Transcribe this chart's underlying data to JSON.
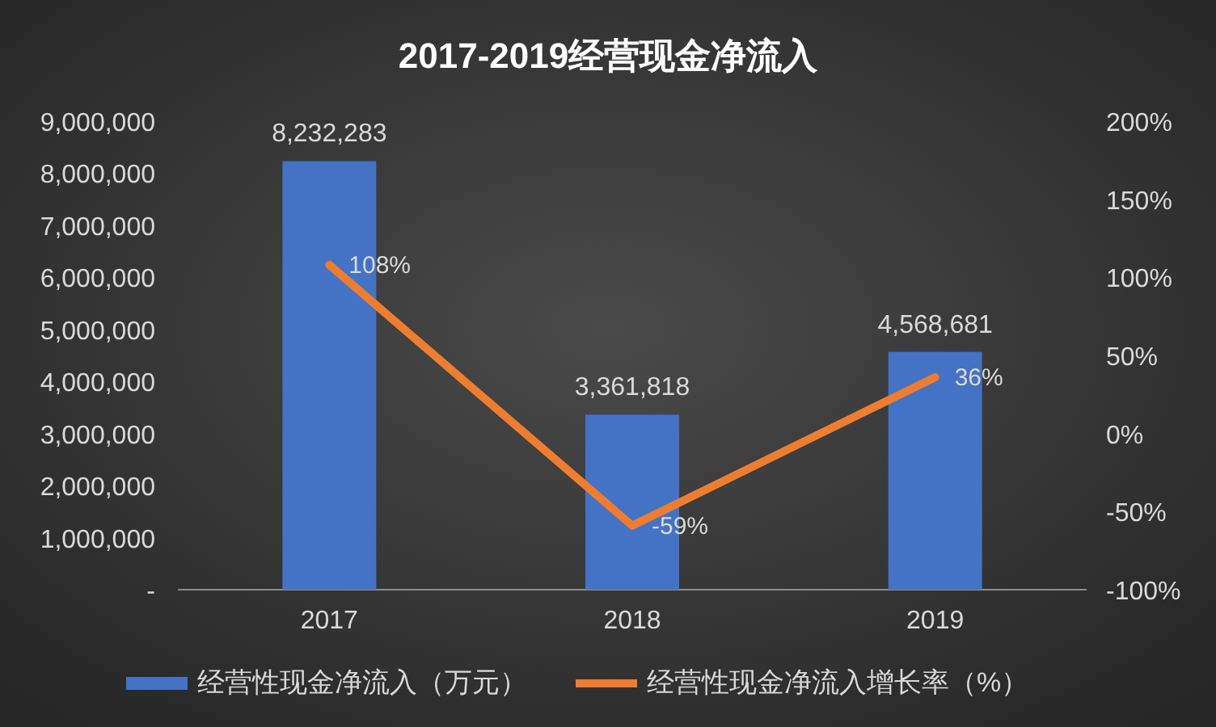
{
  "chart_data": {
    "type": "bar",
    "title": "2017-2019经营现金净流入",
    "categories": [
      "2017",
      "2018",
      "2019"
    ],
    "series": [
      {
        "name": "经营性现金净流入（万元）",
        "color": "#4472c4",
        "values": [
          8232283,
          3361818,
          4568681
        ],
        "value_labels": [
          "8,232,283",
          "3,361,818",
          "4,568,681"
        ]
      },
      {
        "name": "经营性现金净流入增长率（%）",
        "type": "line",
        "axis": "y2",
        "color": "#ed7d31",
        "values": [
          108,
          -59,
          36
        ],
        "value_labels": [
          "108%",
          "-59%",
          "36%"
        ]
      }
    ],
    "ylim": [
      0,
      9000000
    ],
    "yticks": [
      {
        "value": 0,
        "label": "-"
      },
      {
        "value": 1000000,
        "label": "1,000,000"
      },
      {
        "value": 2000000,
        "label": "2,000,000"
      },
      {
        "value": 3000000,
        "label": "3,000,000"
      },
      {
        "value": 4000000,
        "label": "4,000,000"
      },
      {
        "value": 5000000,
        "label": "5,000,000"
      },
      {
        "value": 6000000,
        "label": "6,000,000"
      },
      {
        "value": 7000000,
        "label": "7,000,000"
      },
      {
        "value": 8000000,
        "label": "8,000,000"
      },
      {
        "value": 9000000,
        "label": "9,000,000"
      }
    ],
    "y2lim": [
      -100,
      200
    ],
    "y2ticks": [
      {
        "value": -100,
        "label": "-100%"
      },
      {
        "value": -50,
        "label": "-50%"
      },
      {
        "value": 0,
        "label": "0%"
      },
      {
        "value": 50,
        "label": "50%"
      },
      {
        "value": 100,
        "label": "100%"
      },
      {
        "value": 150,
        "label": "150%"
      },
      {
        "value": 200,
        "label": "200%"
      }
    ],
    "legend": "bottom"
  }
}
